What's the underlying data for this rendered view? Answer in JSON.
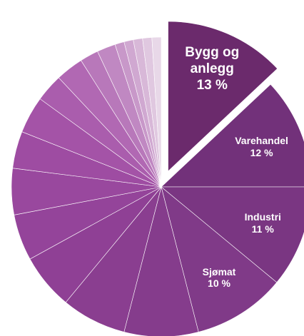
{
  "chart_data": {
    "type": "pie",
    "categories": [
      "Bygg og anlegg",
      "Varehandel",
      "Industri",
      "Sjømat",
      null,
      null,
      null,
      null,
      null,
      null,
      null,
      null,
      null,
      null,
      null,
      null,
      null,
      null,
      null,
      null
    ],
    "values": [
      13,
      12,
      11,
      10,
      8,
      7,
      6,
      5,
      5,
      4,
      4,
      3,
      3,
      2,
      2,
      1,
      1,
      1,
      1,
      1
    ],
    "value_labels": [
      "13 %",
      "12 %",
      "11 %",
      "10 %",
      null,
      null,
      null,
      null,
      null,
      null,
      null,
      null,
      null,
      null,
      null,
      null,
      null,
      null,
      null,
      null
    ],
    "colors": [
      "#6b2a6c",
      "#72317a",
      "#7a3682",
      "#803a88",
      "#853c8c",
      "#8a3e90",
      "#8f4095",
      "#94449a",
      "#99489e",
      "#9e4ca2",
      "#a453a7",
      "#aa5dad",
      "#b168b3",
      "#b878ba",
      "#c088c2",
      "#c898c9",
      "#d0a8d1",
      "#d8b8d8",
      "#e0c8e0",
      "#e8d8e8"
    ],
    "exploded": [
      0
    ]
  }
}
